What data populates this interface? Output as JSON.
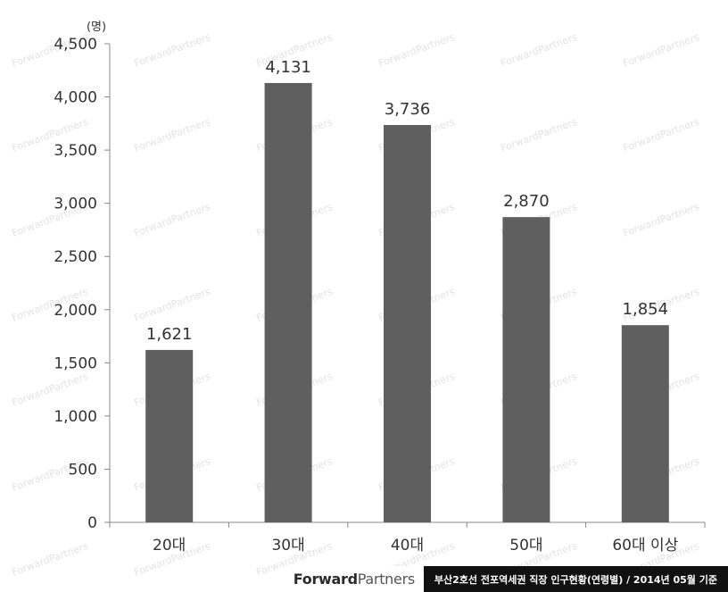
{
  "chart_data": {
    "type": "bar",
    "unit_label": "(명)",
    "categories": [
      "20대",
      "30대",
      "40대",
      "50대",
      "60대 이상"
    ],
    "values": [
      1621,
      4131,
      3736,
      2870,
      1854
    ],
    "value_labels": [
      "1,621",
      "4,131",
      "3,736",
      "2,870",
      "1,854"
    ],
    "ylim": [
      0,
      4500
    ],
    "yticks": [
      0,
      500,
      1000,
      1500,
      2000,
      2500,
      3000,
      3500,
      4000,
      4500
    ],
    "ytick_labels": [
      "0",
      "500",
      "1,000",
      "1,500",
      "2,000",
      "2,500",
      "3,000",
      "3,500",
      "4,000",
      "4,500"
    ],
    "bar_color": "#5f5f5f",
    "grid": false,
    "legend": "none"
  },
  "watermark": "ForwardPartners",
  "footer": {
    "logo_bold": "Forward",
    "logo_light": "Partners",
    "caption": "부산2호선 전포역세권 직장 인구현황(연령별) / 2014년 05월 기준"
  }
}
